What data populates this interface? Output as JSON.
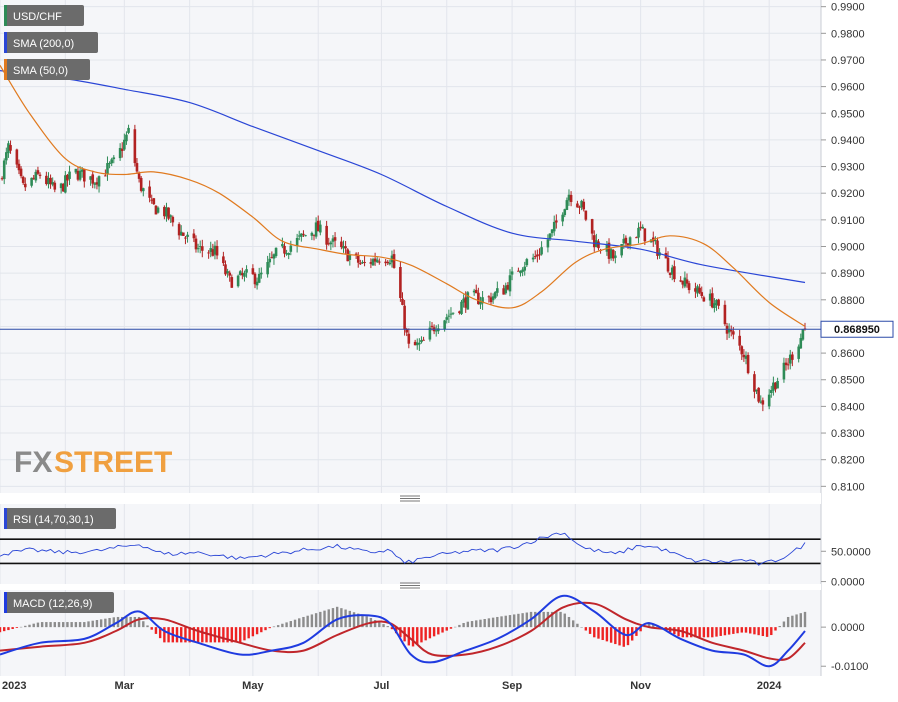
{
  "colors": {
    "background": "#f5f6f9",
    "grid": "#e2e5ec",
    "bull": "#2e8b57",
    "bear": "#b22222",
    "sma200": "#2a46d6",
    "sma50": "#e07a1f",
    "price_line": "#2b4aa8",
    "rsi_line": "#2a46d6",
    "macd_line": "#1f3be0",
    "signal_line": "#c0262b",
    "hist_pos": "#8c8c8c",
    "hist_neg": "#ee2222",
    "watermark_fx": "#8a8a8a",
    "watermark_street": "#f0a040"
  },
  "watermark": {
    "fx": "FX",
    "street": "STREET"
  },
  "chart_data": [
    {
      "type": "candlestick",
      "panel": "price",
      "legend": [
        "USD/CHF",
        "SMA (200,0)",
        "SMA (50,0)"
      ],
      "x_labels": [
        "2023",
        "Mar",
        "May",
        "Jul",
        "Sep",
        "Nov",
        "2024"
      ],
      "x_range": [
        "2023-01-01",
        "2024-01-18"
      ],
      "ylim": [
        0.8075,
        0.9925
      ],
      "y_ticks": [
        "0.9900",
        "0.9800",
        "0.9700",
        "0.9600",
        "0.9500",
        "0.9400",
        "0.9300",
        "0.9200",
        "0.9100",
        "0.9000",
        "0.8900",
        "0.8800",
        "0.8700",
        "0.8600",
        "0.8500",
        "0.8400",
        "0.8300",
        "0.8200",
        "0.8100"
      ],
      "last_price": 0.86895,
      "last_price_label": "0.868950",
      "anchors": {
        "dates": [
          "2023-01-01",
          "2023-01-05",
          "2023-01-12",
          "2023-01-20",
          "2023-01-28",
          "2023-02-05",
          "2023-02-15",
          "2023-02-25",
          "2023-03-03",
          "2023-03-08",
          "2023-03-14",
          "2023-03-20",
          "2023-03-27",
          "2023-04-05",
          "2023-04-13",
          "2023-04-20",
          "2023-04-28",
          "2023-05-04",
          "2023-05-12",
          "2023-05-20",
          "2023-05-31",
          "2023-06-08",
          "2023-06-15",
          "2023-06-22",
          "2023-06-30",
          "2023-07-06",
          "2023-07-10",
          "2023-07-14",
          "2023-07-20",
          "2023-07-27",
          "2023-08-03",
          "2023-08-12",
          "2023-08-20",
          "2023-08-28",
          "2023-09-05",
          "2023-09-12",
          "2023-09-20",
          "2023-09-28",
          "2023-10-04",
          "2023-10-10",
          "2023-10-15",
          "2023-10-20",
          "2023-10-26",
          "2023-11-01",
          "2023-11-08",
          "2023-11-15",
          "2023-11-22",
          "2023-11-30",
          "2023-12-06",
          "2023-12-13",
          "2023-12-20",
          "2023-12-28",
          "2024-01-03",
          "2024-01-09",
          "2024-01-18"
        ],
        "close": [
          0.925,
          0.937,
          0.922,
          0.927,
          0.92,
          0.928,
          0.925,
          0.932,
          0.943,
          0.924,
          0.915,
          0.913,
          0.906,
          0.899,
          0.898,
          0.887,
          0.889,
          0.888,
          0.897,
          0.901,
          0.907,
          0.901,
          0.897,
          0.893,
          0.896,
          0.896,
          0.88,
          0.862,
          0.863,
          0.871,
          0.875,
          0.881,
          0.88,
          0.884,
          0.893,
          0.896,
          0.905,
          0.92,
          0.915,
          0.902,
          0.899,
          0.895,
          0.903,
          0.906,
          0.9,
          0.892,
          0.886,
          0.882,
          0.879,
          0.868,
          0.86,
          0.841,
          0.848,
          0.855,
          0.869
        ]
      },
      "series": [
        {
          "name": "SMA (200,0)",
          "dates": [
            "2023-01-01",
            "2023-02-01",
            "2023-03-01",
            "2023-04-01",
            "2023-05-01",
            "2023-06-01",
            "2023-07-01",
            "2023-08-01",
            "2023-09-01",
            "2023-10-01",
            "2023-11-01",
            "2023-12-01",
            "2024-01-18"
          ],
          "values": [
            0.966,
            0.963,
            0.959,
            0.954,
            0.945,
            0.936,
            0.927,
            0.915,
            0.905,
            0.902,
            0.899,
            0.893,
            0.8865
          ]
        },
        {
          "name": "SMA (50,0)",
          "dates": [
            "2023-01-01",
            "2023-01-15",
            "2023-02-01",
            "2023-02-15",
            "2023-03-01",
            "2023-03-15",
            "2023-04-01",
            "2023-04-15",
            "2023-05-01",
            "2023-05-15",
            "2023-06-01",
            "2023-06-15",
            "2023-07-01",
            "2023-07-15",
            "2023-08-01",
            "2023-08-15",
            "2023-09-01",
            "2023-09-15",
            "2023-10-01",
            "2023-10-15",
            "2023-11-01",
            "2023-11-15",
            "2023-12-01",
            "2023-12-15",
            "2024-01-01",
            "2024-01-18"
          ],
          "values": [
            0.968,
            0.95,
            0.933,
            0.928,
            0.927,
            0.928,
            0.925,
            0.92,
            0.911,
            0.902,
            0.899,
            0.897,
            0.896,
            0.893,
            0.886,
            0.88,
            0.877,
            0.883,
            0.894,
            0.899,
            0.901,
            0.904,
            0.901,
            0.892,
            0.879,
            0.87
          ]
        }
      ]
    },
    {
      "type": "line",
      "panel": "rsi",
      "legend": [
        "RSI (14,70,30,1)"
      ],
      "ylim": [
        -4,
        128
      ],
      "y_ticks": [
        "50.0000",
        "0.0000"
      ],
      "levels": [
        70,
        30
      ],
      "series": [
        {
          "name": "RSI (14,70,30,1)",
          "dates": [
            "2023-01-01",
            "2023-01-15",
            "2023-02-01",
            "2023-02-15",
            "2023-03-01",
            "2023-03-08",
            "2023-03-20",
            "2023-04-05",
            "2023-04-25",
            "2023-05-10",
            "2023-05-25",
            "2023-06-10",
            "2023-06-25",
            "2023-07-05",
            "2023-07-12",
            "2023-07-25",
            "2023-08-10",
            "2023-08-25",
            "2023-09-05",
            "2023-09-15",
            "2023-09-25",
            "2023-10-05",
            "2023-10-20",
            "2023-11-01",
            "2023-11-10",
            "2023-11-25",
            "2023-12-10",
            "2023-12-20",
            "2023-12-28",
            "2024-01-05",
            "2024-01-12",
            "2024-01-18"
          ],
          "values": [
            45,
            52,
            48,
            50,
            58,
            62,
            45,
            48,
            38,
            45,
            52,
            58,
            48,
            52,
            30,
            42,
            50,
            52,
            60,
            72,
            82,
            55,
            45,
            60,
            55,
            35,
            32,
            36,
            28,
            36,
            48,
            62
          ]
        }
      ]
    },
    {
      "type": "line",
      "panel": "macd",
      "legend": [
        "MACD (12,26,9)"
      ],
      "ylim": [
        -0.0125,
        0.0095
      ],
      "y_ticks": [
        "0.0000",
        "-0.0100"
      ],
      "series": [
        {
          "name": "MACD",
          "dates": [
            "2023-01-01",
            "2023-01-20",
            "2023-02-10",
            "2023-02-25",
            "2023-03-08",
            "2023-03-20",
            "2023-04-05",
            "2023-04-25",
            "2023-05-10",
            "2023-05-25",
            "2023-06-10",
            "2023-06-25",
            "2023-07-05",
            "2023-07-15",
            "2023-07-25",
            "2023-08-10",
            "2023-08-25",
            "2023-09-10",
            "2023-09-25",
            "2023-10-10",
            "2023-10-25",
            "2023-11-05",
            "2023-11-20",
            "2023-12-05",
            "2023-12-20",
            "2024-01-01",
            "2024-01-10",
            "2024-01-18"
          ],
          "values": [
            -0.007,
            -0.004,
            -0.003,
            0.001,
            0.004,
            -0.001,
            -0.004,
            -0.007,
            -0.006,
            -0.004,
            0.002,
            0.003,
            0.001,
            -0.007,
            -0.009,
            -0.006,
            -0.003,
            0.002,
            0.008,
            0.004,
            -0.002,
            0.001,
            -0.003,
            -0.006,
            -0.007,
            -0.01,
            -0.006,
            -0.001
          ]
        },
        {
          "name": "Signal",
          "dates": [
            "2023-01-01",
            "2023-01-20",
            "2023-02-10",
            "2023-02-25",
            "2023-03-08",
            "2023-03-20",
            "2023-04-05",
            "2023-04-25",
            "2023-05-10",
            "2023-05-25",
            "2023-06-10",
            "2023-06-25",
            "2023-07-05",
            "2023-07-15",
            "2023-07-25",
            "2023-08-10",
            "2023-08-25",
            "2023-09-10",
            "2023-09-25",
            "2023-10-10",
            "2023-10-25",
            "2023-11-05",
            "2023-11-20",
            "2023-12-05",
            "2023-12-20",
            "2024-01-01",
            "2024-01-10",
            "2024-01-18"
          ],
          "values": [
            -0.006,
            -0.005,
            -0.004,
            -0.001,
            0.002,
            0.002,
            -0.001,
            -0.004,
            -0.006,
            -0.006,
            -0.002,
            0.001,
            0.001,
            -0.003,
            -0.007,
            -0.007,
            -0.005,
            -0.001,
            0.005,
            0.006,
            0.002,
            0.0,
            -0.001,
            -0.004,
            -0.006,
            -0.008,
            -0.008,
            -0.004
          ]
        }
      ]
    }
  ]
}
